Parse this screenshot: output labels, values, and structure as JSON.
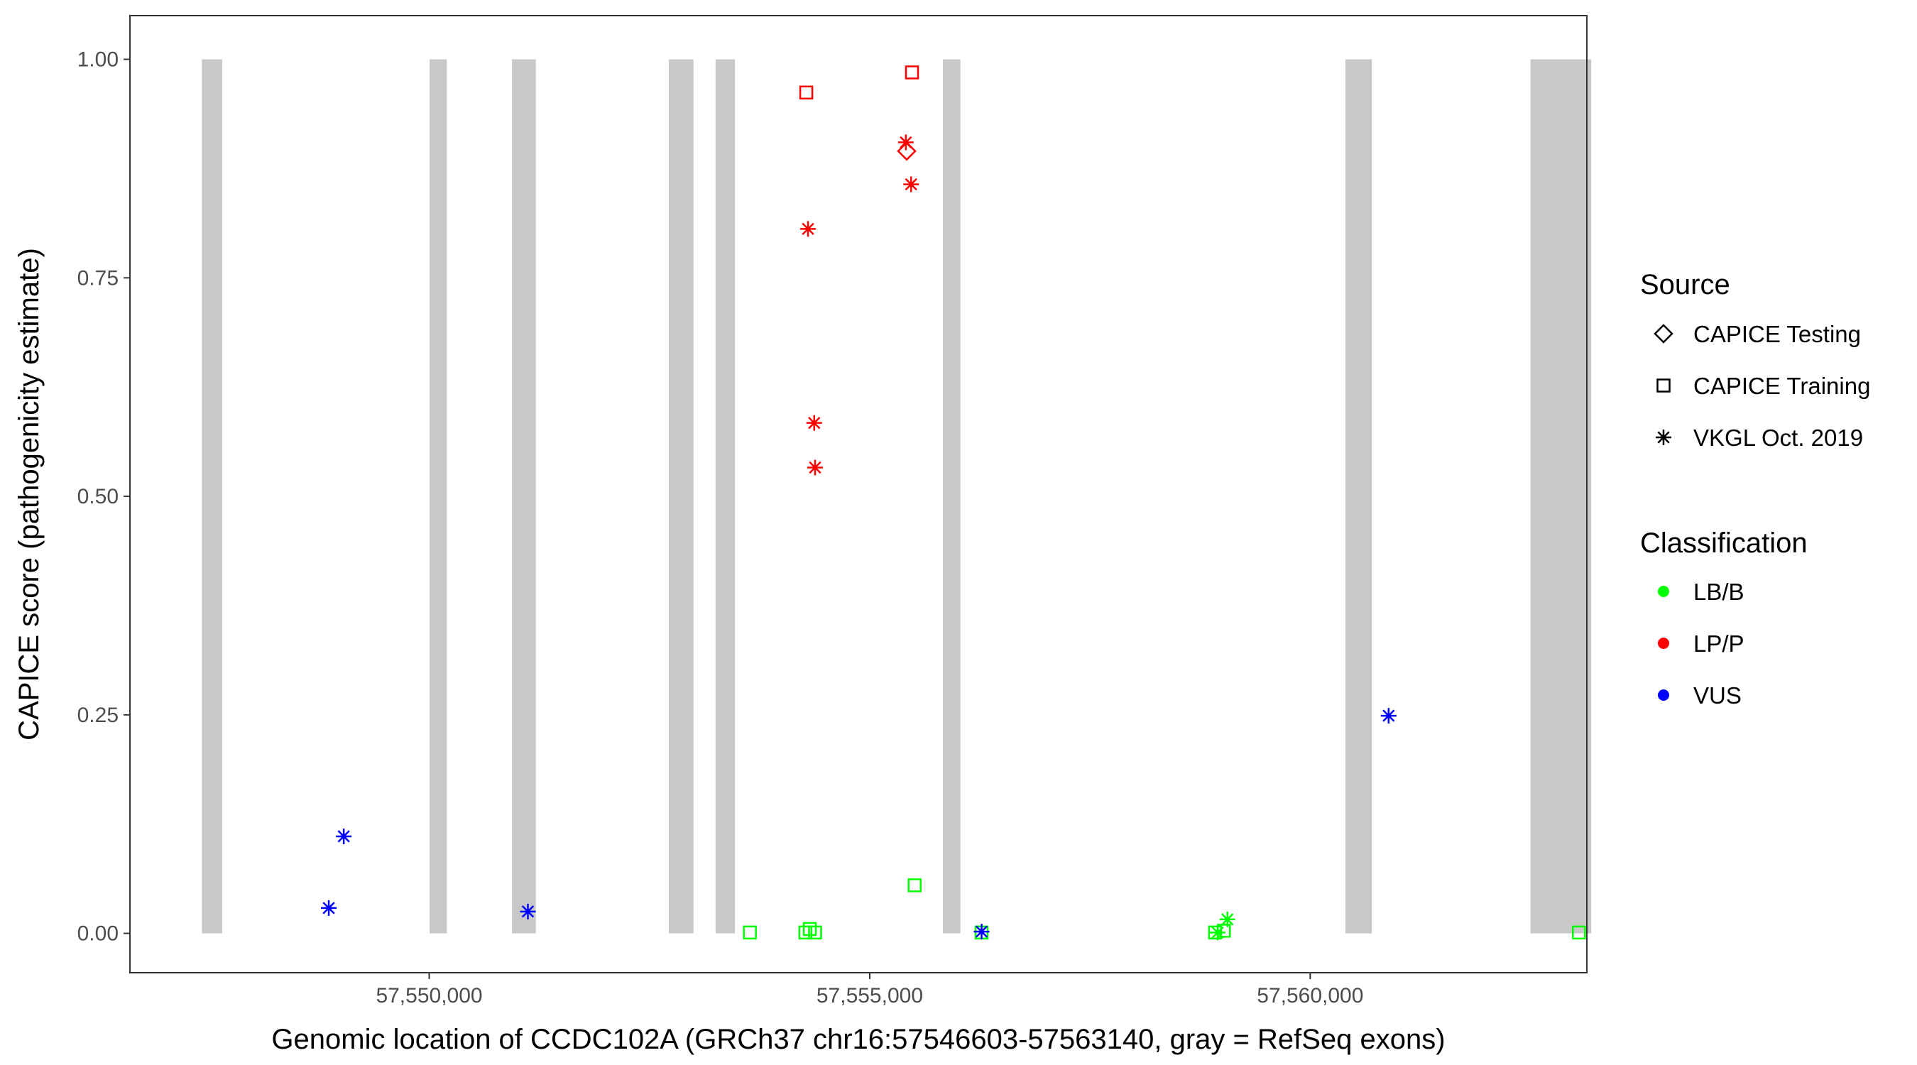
{
  "chart_data": {
    "type": "scatter",
    "title": "",
    "xlabel": "Genomic location of CCDC102A (GRCh37 chr16:57546603-57563140, gray = RefSeq exons)",
    "ylabel": "CAPICE score (pathogenicity estimate)",
    "xlim": [
      57546603,
      57563140
    ],
    "ylim": [
      -0.045,
      1.05
    ],
    "x_ticks": [
      57550000,
      57555000,
      57560000
    ],
    "x_tick_labels": [
      "57,550,000",
      "57,555,000",
      "57,560,000"
    ],
    "y_ticks": [
      0,
      0.25,
      0.5,
      0.75,
      1.0
    ],
    "y_tick_labels": [
      "0.00",
      "0.25",
      "0.50",
      "0.75",
      "1.00"
    ],
    "grid": false,
    "legend_position": "right",
    "exons": [
      [
        57547420,
        57547650
      ],
      [
        57550005,
        57550200
      ],
      [
        57550940,
        57551210
      ],
      [
        57552720,
        57553000
      ],
      [
        57553250,
        57553470
      ],
      [
        57555830,
        57556030
      ],
      [
        57560400,
        57560700
      ],
      [
        57562500,
        57563190
      ]
    ],
    "legend": {
      "source_title": "Source",
      "sources": [
        {
          "label": "CAPICE Testing",
          "shape": "diamond"
        },
        {
          "label": "CAPICE Training",
          "shape": "square"
        },
        {
          "label": "VKGL Oct. 2019",
          "shape": "asterisk"
        }
      ],
      "class_title": "Classification",
      "classes": [
        {
          "label": "LB/B",
          "color": "#00ff00"
        },
        {
          "label": "LP/P",
          "color": "#ff0000"
        },
        {
          "label": "VUS",
          "color": "#0000ff"
        }
      ]
    },
    "series": [
      {
        "source": "CAPICE Testing",
        "classification": "LP/P",
        "points": [
          [
            57555420,
            0.895
          ]
        ]
      },
      {
        "source": "CAPICE Training",
        "classification": "LP/P",
        "points": [
          [
            57554280,
            0.962
          ],
          [
            57555480,
            0.985
          ]
        ]
      },
      {
        "source": "CAPICE Training",
        "classification": "LB/B",
        "points": [
          [
            57553640,
            0.001
          ],
          [
            57554270,
            0.001
          ],
          [
            57554320,
            0.005
          ],
          [
            57554380,
            0.001
          ],
          [
            57555510,
            0.055
          ],
          [
            57556270,
            0.001
          ],
          [
            57558920,
            0.001
          ],
          [
            57559020,
            0.003
          ],
          [
            57563050,
            0.001
          ]
        ]
      },
      {
        "source": "VKGL Oct. 2019",
        "classification": "LP/P",
        "points": [
          [
            57554300,
            0.806
          ],
          [
            57554370,
            0.584
          ],
          [
            57554380,
            0.533
          ],
          [
            57555410,
            0.905
          ],
          [
            57555470,
            0.857
          ]
        ]
      },
      {
        "source": "VKGL Oct. 2019",
        "classification": "LB/B",
        "points": [
          [
            57558950,
            0.001
          ],
          [
            57559060,
            0.016
          ]
        ]
      },
      {
        "source": "VKGL Oct. 2019",
        "classification": "VUS",
        "points": [
          [
            57548860,
            0.029
          ],
          [
            57549030,
            0.111
          ],
          [
            57551120,
            0.025
          ],
          [
            57556270,
            0.002
          ],
          [
            57560890,
            0.249
          ]
        ]
      }
    ]
  }
}
